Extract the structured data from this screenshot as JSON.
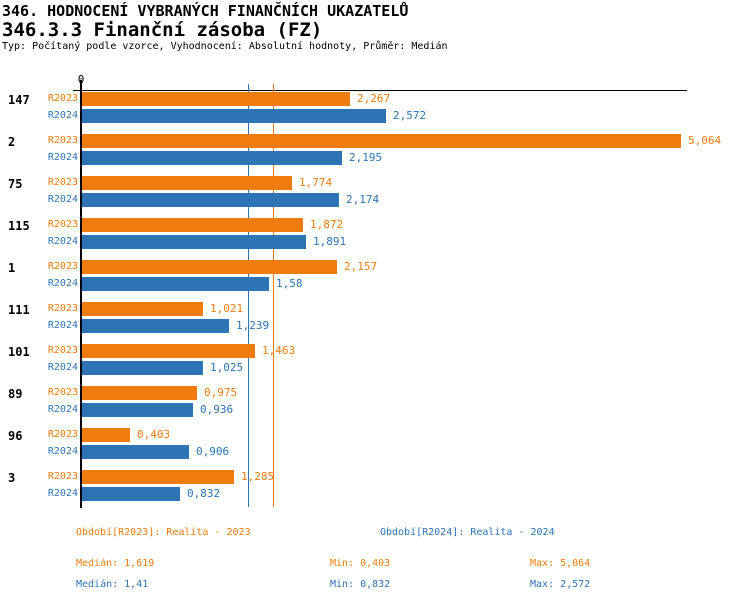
{
  "header": {
    "title": "346. HODNOCENÍ VYBRANÝCH FINANČNÍCH UKAZATELŮ",
    "subtitle": "346.3.3 Finanční zásoba (FZ)",
    "meta": "Typ: Počítaný podle vzorce, Vyhodnocení: Absolutní hodnoty, Průměr: Medián"
  },
  "colors": {
    "r2023": "#F07C10",
    "r2024": "#2E74B5",
    "axis": "#000000",
    "background": "#FFFFFF"
  },
  "chart_data": {
    "type": "bar",
    "orientation": "horizontal",
    "grid": false,
    "origin_label": "0",
    "xlim": [
      0,
      5.2
    ],
    "categories": [
      "147",
      "2",
      "75",
      "115",
      "1",
      "111",
      "101",
      "89",
      "96",
      "3"
    ],
    "series": [
      {
        "name": "R2023",
        "color": "#F07C10",
        "values": [
          2.267,
          5.064,
          1.774,
          1.872,
          2.157,
          1.021,
          1.463,
          0.975,
          0.403,
          1.285
        ],
        "labels": [
          "2,267",
          "5,064",
          "1,774",
          "1,872",
          "2,157",
          "1,021",
          "1,463",
          "0,975",
          "0,403",
          "1,285"
        ]
      },
      {
        "name": "R2024",
        "color": "#2E74B5",
        "values": [
          2.572,
          2.195,
          2.174,
          1.891,
          1.58,
          1.239,
          1.025,
          0.936,
          0.906,
          0.832
        ],
        "labels": [
          "2,572",
          "2,195",
          "2,174",
          "1,891",
          "1,58",
          "1,239",
          "1,025",
          "0,936",
          "0,906",
          "0,832"
        ]
      }
    ],
    "median_lines": [
      {
        "series": "R2023",
        "value": 1.619,
        "color": "#F07C10"
      },
      {
        "series": "R2024",
        "value": 1.41,
        "color": "#2E74B5"
      }
    ]
  },
  "legend": {
    "r2023": "Období[R2023]: Realita - 2023",
    "r2024": "Období[R2024]: Realita - 2024"
  },
  "stats": {
    "r2023": {
      "median": "Medián: 1,619",
      "min": "Min: 0,403",
      "max": "Max: 5,064"
    },
    "r2024": {
      "median": "Medián: 1,41",
      "min": "Min: 0,832",
      "max": "Max: 2,572"
    }
  }
}
